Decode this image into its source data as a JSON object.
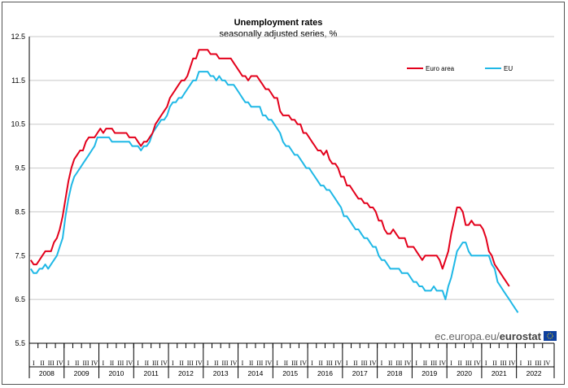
{
  "source": {
    "prefix": "ec.europa.eu/",
    "brand": "eurostat"
  },
  "chart_data": {
    "type": "line",
    "title": "Unemployment rates",
    "subtitle": "seasonally adjusted series, %",
    "xlabel": "",
    "ylabel": "",
    "ylim": [
      5.5,
      12.5
    ],
    "yticks": [
      "12.5",
      "11.5",
      "10.5",
      "9.5",
      "8.5",
      "7.5",
      "6.5",
      "5.5"
    ],
    "grid": true,
    "legend_position": "top-right",
    "x_start": "2008-01",
    "quarter_labels": [
      "I",
      "II",
      "III",
      "IV"
    ],
    "years": [
      "2008",
      "2009",
      "2010",
      "2011",
      "2012",
      "2013",
      "2014",
      "2015",
      "2016",
      "2017",
      "2018",
      "2019",
      "2020",
      "2021",
      "2022"
    ],
    "series": [
      {
        "name": "Euro area",
        "color": "#e3001b",
        "values": [
          7.4,
          7.3,
          7.3,
          7.4,
          7.5,
          7.6,
          7.6,
          7.6,
          7.8,
          7.9,
          8.1,
          8.4,
          8.8,
          9.2,
          9.5,
          9.7,
          9.8,
          9.9,
          9.9,
          10.1,
          10.2,
          10.2,
          10.2,
          10.3,
          10.4,
          10.3,
          10.4,
          10.4,
          10.4,
          10.3,
          10.3,
          10.3,
          10.3,
          10.3,
          10.2,
          10.2,
          10.2,
          10.1,
          10.0,
          10.1,
          10.1,
          10.2,
          10.3,
          10.5,
          10.6,
          10.7,
          10.8,
          10.9,
          11.1,
          11.2,
          11.3,
          11.4,
          11.5,
          11.5,
          11.6,
          11.8,
          12.0,
          12.0,
          12.2,
          12.2,
          12.2,
          12.2,
          12.1,
          12.1,
          12.1,
          12.0,
          12.0,
          12.0,
          12.0,
          12.0,
          11.9,
          11.8,
          11.7,
          11.6,
          11.6,
          11.5,
          11.6,
          11.6,
          11.6,
          11.5,
          11.4,
          11.3,
          11.3,
          11.2,
          11.1,
          11.1,
          10.8,
          10.7,
          10.7,
          10.7,
          10.6,
          10.6,
          10.5,
          10.5,
          10.3,
          10.3,
          10.2,
          10.1,
          10.0,
          9.9,
          9.9,
          9.8,
          9.9,
          9.7,
          9.6,
          9.6,
          9.5,
          9.3,
          9.3,
          9.1,
          9.1,
          9.0,
          8.9,
          8.8,
          8.8,
          8.7,
          8.7,
          8.6,
          8.6,
          8.5,
          8.3,
          8.3,
          8.1,
          8.0,
          8.0,
          8.1,
          8.0,
          7.9,
          7.9,
          7.9,
          7.7,
          7.7,
          7.7,
          7.6,
          7.5,
          7.4,
          7.5,
          7.5,
          7.5,
          7.5,
          7.5,
          7.4,
          7.2,
          7.4,
          7.6,
          8.0,
          8.3,
          8.6,
          8.6,
          8.5,
          8.2,
          8.2,
          8.3,
          8.2,
          8.2,
          8.2,
          8.1,
          7.9,
          7.6,
          7.5,
          7.3,
          7.2,
          7.1,
          7.0,
          6.9,
          6.8
        ]
      },
      {
        "name": "EU",
        "color": "#1fb8e6",
        "values": [
          7.2,
          7.1,
          7.1,
          7.2,
          7.2,
          7.3,
          7.2,
          7.3,
          7.4,
          7.5,
          7.7,
          7.9,
          8.4,
          8.8,
          9.1,
          9.3,
          9.4,
          9.5,
          9.6,
          9.7,
          9.8,
          9.9,
          10.0,
          10.2,
          10.2,
          10.2,
          10.2,
          10.2,
          10.1,
          10.1,
          10.1,
          10.1,
          10.1,
          10.1,
          10.1,
          10.0,
          10.0,
          10.0,
          9.9,
          10.0,
          10.0,
          10.1,
          10.3,
          10.4,
          10.5,
          10.6,
          10.6,
          10.7,
          10.9,
          11.0,
          11.0,
          11.1,
          11.1,
          11.2,
          11.3,
          11.4,
          11.5,
          11.5,
          11.7,
          11.7,
          11.7,
          11.7,
          11.6,
          11.6,
          11.5,
          11.6,
          11.5,
          11.5,
          11.4,
          11.4,
          11.4,
          11.3,
          11.2,
          11.1,
          11.0,
          11.0,
          10.9,
          10.9,
          10.9,
          10.9,
          10.7,
          10.7,
          10.6,
          10.6,
          10.5,
          10.4,
          10.3,
          10.1,
          10.0,
          10.0,
          9.9,
          9.8,
          9.8,
          9.7,
          9.6,
          9.5,
          9.5,
          9.4,
          9.3,
          9.2,
          9.1,
          9.1,
          9.0,
          9.0,
          8.9,
          8.8,
          8.7,
          8.6,
          8.4,
          8.4,
          8.3,
          8.2,
          8.1,
          8.1,
          8.0,
          7.9,
          7.9,
          7.8,
          7.7,
          7.7,
          7.5,
          7.4,
          7.4,
          7.3,
          7.2,
          7.2,
          7.2,
          7.2,
          7.1,
          7.1,
          7.1,
          7.0,
          6.9,
          6.9,
          6.8,
          6.8,
          6.7,
          6.7,
          6.7,
          6.8,
          6.7,
          6.7,
          6.7,
          6.5,
          6.8,
          7.0,
          7.3,
          7.6,
          7.7,
          7.8,
          7.8,
          7.6,
          7.5,
          7.5,
          7.5,
          7.5,
          7.5,
          7.5,
          7.5,
          7.3,
          7.2,
          6.9,
          6.8,
          6.7,
          6.6,
          6.5,
          6.4,
          6.3,
          6.2
        ]
      }
    ]
  }
}
